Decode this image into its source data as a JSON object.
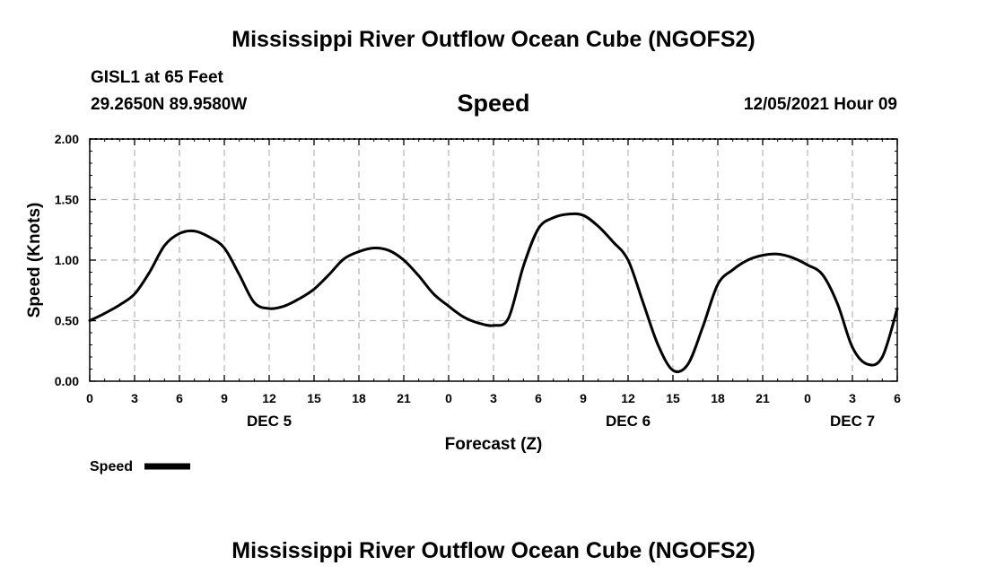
{
  "header": {
    "title": "Mississippi River Outflow Ocean Cube (NGOFS2)",
    "station": "GISL1 at 65 Feet",
    "coords": "29.2650N  89.9580W",
    "chart_title": "Speed",
    "timestamp": "12/05/2021 Hour 09"
  },
  "footer": {
    "title": "Mississippi River Outflow Ocean Cube (NGOFS2)"
  },
  "chart_data": {
    "type": "line",
    "title": "Speed",
    "xlabel": "Forecast (Z)",
    "ylabel": "Speed (Knots)",
    "xlim": [
      0,
      54
    ],
    "ylim": [
      0,
      2
    ],
    "grid": true,
    "x_tick_labels": [
      "0",
      "3",
      "6",
      "9",
      "12",
      "15",
      "18",
      "21",
      "0",
      "3",
      "6",
      "9",
      "12",
      "15",
      "18",
      "21",
      "0",
      "3",
      "6"
    ],
    "y_tick_labels": [
      "0.00",
      "0.50",
      "1.00",
      "1.50",
      "2.00"
    ],
    "y_ticks": [
      0,
      0.5,
      1.0,
      1.5,
      2.0
    ],
    "date_labels": [
      {
        "label": "DEC 5",
        "x": 12
      },
      {
        "label": "DEC 6",
        "x": 36
      },
      {
        "label": "DEC 7",
        "x": 51
      }
    ],
    "legend": {
      "label": "Speed",
      "placement": "bottom-left"
    },
    "series": [
      {
        "name": "Speed",
        "color": "#000000",
        "x": [
          0,
          1,
          2,
          3,
          4,
          5,
          6,
          7,
          8,
          9,
          10,
          11,
          12,
          13,
          14,
          15,
          16,
          17,
          18,
          19,
          20,
          21,
          22,
          23,
          24,
          25,
          26,
          27,
          28,
          29,
          30,
          31,
          32,
          33,
          34,
          35,
          36,
          37,
          38,
          39,
          40,
          41,
          42,
          43,
          44,
          45,
          46,
          47,
          48,
          49,
          50,
          51,
          52,
          53,
          54
        ],
        "values": [
          0.5,
          0.56,
          0.63,
          0.72,
          0.9,
          1.12,
          1.22,
          1.24,
          1.19,
          1.1,
          0.88,
          0.65,
          0.6,
          0.62,
          0.68,
          0.76,
          0.88,
          1.01,
          1.07,
          1.1,
          1.08,
          1.0,
          0.87,
          0.72,
          0.62,
          0.53,
          0.48,
          0.46,
          0.52,
          0.95,
          1.26,
          1.35,
          1.38,
          1.37,
          1.28,
          1.15,
          1.0,
          0.65,
          0.3,
          0.09,
          0.14,
          0.45,
          0.8,
          0.92,
          1.0,
          1.04,
          1.05,
          1.02,
          0.96,
          0.88,
          0.64,
          0.28,
          0.14,
          0.2,
          0.6
        ]
      }
    ]
  }
}
